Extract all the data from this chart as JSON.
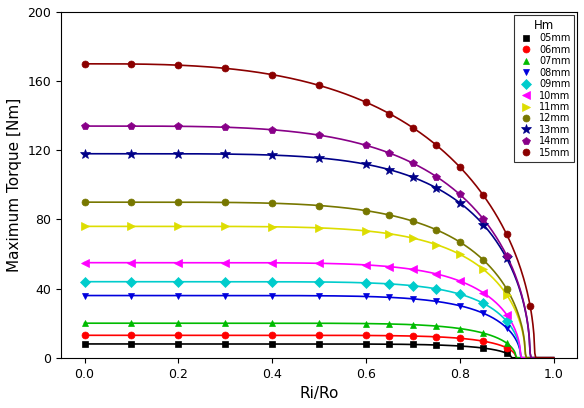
{
  "xlabel": "Ri/Ro",
  "ylabel": "Maximum Torque [Nm]",
  "xlim": [
    -0.05,
    1.05
  ],
  "ylim": [
    0,
    200
  ],
  "xticks": [
    0.0,
    0.2,
    0.4,
    0.6,
    0.8,
    1.0
  ],
  "yticks": [
    0,
    40,
    80,
    120,
    160,
    200
  ],
  "legend_title": "Hm",
  "series": [
    {
      "label": "05mm",
      "color": "#000000",
      "marker": "s",
      "peak": 8,
      "n": 10,
      "dropoff": 0.91
    },
    {
      "label": "06mm",
      "color": "#ff0000",
      "marker": "o",
      "peak": 13,
      "n": 10,
      "dropoff": 0.92
    },
    {
      "label": "07mm",
      "color": "#00bb00",
      "marker": "^",
      "peak": 20,
      "n": 9,
      "dropoff": 0.92
    },
    {
      "label": "08mm",
      "color": "#0000dd",
      "marker": "v",
      "peak": 36,
      "n": 8,
      "dropoff": 0.93
    },
    {
      "label": "09mm",
      "color": "#00cccc",
      "marker": "D",
      "peak": 44,
      "n": 8,
      "dropoff": 0.93
    },
    {
      "label": "10mm",
      "color": "#ff00ff",
      "marker": "<",
      "peak": 55,
      "n": 7,
      "dropoff": 0.93
    },
    {
      "label": "11mm",
      "color": "#dddd00",
      "marker": ">",
      "peak": 76,
      "n": 6,
      "dropoff": 0.94
    },
    {
      "label": "12mm",
      "color": "#777700",
      "marker": "o",
      "peak": 90,
      "n": 5,
      "dropoff": 0.94
    },
    {
      "label": "13mm",
      "color": "#000088",
      "marker": "*",
      "peak": 118,
      "n": 5,
      "dropoff": 0.95
    },
    {
      "label": "14mm",
      "color": "#880088",
      "marker": "p",
      "peak": 134,
      "n": 4,
      "dropoff": 0.95
    },
    {
      "label": "15mm",
      "color": "#8B0000",
      "marker": "o",
      "peak": 170,
      "n": 3,
      "dropoff": 0.96
    }
  ]
}
